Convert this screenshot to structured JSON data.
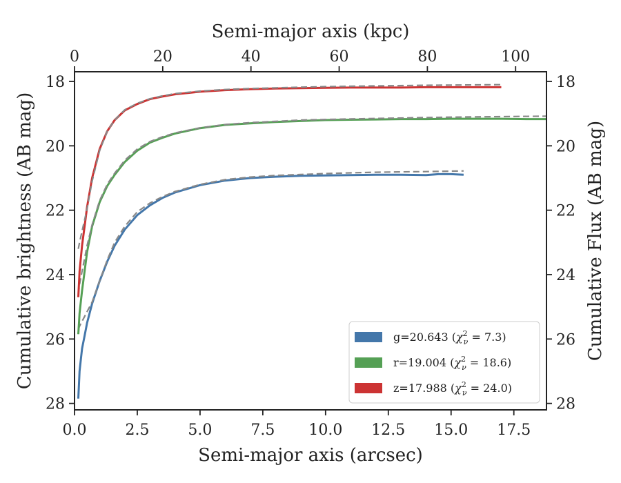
{
  "chart_data": {
    "type": "line",
    "xlabel": "Semi-major axis (arcsec)",
    "xlabel_top": "Semi-major axis (kpc)",
    "ylabel": "Cumulative brightness (AB mag)",
    "ylabel_right": "Cumulative Flux (AB mag)",
    "xlim": [
      0,
      18.8
    ],
    "ylim": [
      28.2,
      17.7
    ],
    "x_top_lim": [
      0,
      107
    ],
    "x_ticks": [
      0,
      2.5,
      5,
      7.5,
      10,
      12.5,
      15,
      17.5
    ],
    "x_tick_labels": [
      "0.0",
      "2.5",
      "5.0",
      "7.5",
      "10.0",
      "12.5",
      "15.0",
      "17.5"
    ],
    "x_top_ticks": [
      0,
      20,
      40,
      60,
      80,
      100
    ],
    "x_top_tick_labels": [
      "0",
      "20",
      "40",
      "60",
      "80",
      "100"
    ],
    "y_ticks": [
      18,
      20,
      22,
      24,
      26,
      28
    ],
    "y_tick_labels": [
      "18",
      "20",
      "22",
      "24",
      "26",
      "28"
    ],
    "legend_position": "lower-right",
    "series": [
      {
        "key": "g",
        "legend_prefix": "g=20.643 (",
        "legend_chi": "7.3",
        "color": "#4477aa",
        "fit_color": "#888888",
        "x": [
          0.15,
          0.2,
          0.3,
          0.4,
          0.5,
          0.7,
          1.0,
          1.3,
          1.6,
          2.0,
          2.5,
          3.0,
          3.5,
          4.0,
          5.0,
          6.0,
          7.0,
          8.0,
          9.0,
          10.0,
          11.0,
          12.0,
          13.0,
          14.0,
          14.5,
          15.0,
          15.5
        ],
        "y": [
          27.85,
          27.0,
          26.3,
          25.9,
          25.5,
          24.9,
          24.2,
          23.6,
          23.1,
          22.6,
          22.15,
          21.85,
          21.62,
          21.45,
          21.22,
          21.08,
          21.0,
          20.96,
          20.93,
          20.92,
          20.91,
          20.9,
          20.9,
          20.91,
          20.88,
          20.88,
          20.9
        ],
        "fit_x": [
          0.15,
          0.2,
          0.3,
          0.4,
          0.5,
          0.7,
          1.0,
          1.3,
          1.6,
          2.0,
          2.5,
          3.0,
          3.5,
          4.0,
          5.0,
          6.0,
          7.0,
          8.0,
          9.0,
          10.0,
          11.0,
          12.0,
          13.0,
          14.0,
          15.5
        ],
        "fit_y": [
          25.7,
          25.6,
          25.45,
          25.3,
          25.15,
          24.85,
          24.2,
          23.55,
          23.0,
          22.5,
          22.05,
          21.78,
          21.58,
          21.42,
          21.2,
          21.05,
          20.97,
          20.92,
          20.89,
          20.86,
          20.84,
          20.82,
          20.81,
          20.8,
          20.78
        ]
      },
      {
        "key": "r",
        "legend_prefix": "r=19.004 (",
        "legend_chi": "18.6",
        "color": "#55a055",
        "fit_color": "#888888",
        "x": [
          0.15,
          0.2,
          0.3,
          0.4,
          0.5,
          0.7,
          1.0,
          1.3,
          1.6,
          2.0,
          2.5,
          3.0,
          3.5,
          4.0,
          5.0,
          6.0,
          7.0,
          8.0,
          9.0,
          10.0,
          11.0,
          12.0,
          13.0,
          14.0,
          15.0,
          16.0,
          17.0,
          18.0,
          18.8
        ],
        "y": [
          25.85,
          25.2,
          24.5,
          23.9,
          23.3,
          22.5,
          21.75,
          21.25,
          20.9,
          20.5,
          20.15,
          19.9,
          19.75,
          19.62,
          19.45,
          19.35,
          19.3,
          19.26,
          19.23,
          19.2,
          19.19,
          19.18,
          19.17,
          19.17,
          19.16,
          19.16,
          19.16,
          19.17,
          19.17
        ],
        "fit_x": [
          0.15,
          0.2,
          0.3,
          0.4,
          0.5,
          0.7,
          1.0,
          1.3,
          1.6,
          2.0,
          2.5,
          3.0,
          3.5,
          4.0,
          5.0,
          6.0,
          7.0,
          8.0,
          9.0,
          10.0,
          12.0,
          14.0,
          16.0,
          18.8
        ],
        "fit_y": [
          24.6,
          24.3,
          23.9,
          23.5,
          23.1,
          22.45,
          21.7,
          21.2,
          20.85,
          20.45,
          20.1,
          19.87,
          19.72,
          19.6,
          19.44,
          19.34,
          19.28,
          19.24,
          19.2,
          19.18,
          19.15,
          19.12,
          19.1,
          19.08
        ]
      },
      {
        "key": "z",
        "legend_prefix": "z=17.988 (",
        "legend_chi": "24.0",
        "color": "#cc3333",
        "fit_color": "#888888",
        "x": [
          0.15,
          0.2,
          0.3,
          0.4,
          0.5,
          0.7,
          1.0,
          1.3,
          1.6,
          2.0,
          2.5,
          3.0,
          3.5,
          4.0,
          5.0,
          6.0,
          7.0,
          8.0,
          9.0,
          10.0,
          11.0,
          12.0,
          13.0,
          14.0,
          15.0,
          16.0,
          17.0
        ],
        "y": [
          24.7,
          23.9,
          23.1,
          22.5,
          21.9,
          21.0,
          20.1,
          19.55,
          19.2,
          18.9,
          18.7,
          18.55,
          18.47,
          18.4,
          18.32,
          18.27,
          18.24,
          18.22,
          18.21,
          18.2,
          18.19,
          18.19,
          18.19,
          18.18,
          18.18,
          18.18,
          18.18
        ],
        "fit_x": [
          0.15,
          0.2,
          0.3,
          0.4,
          0.5,
          0.7,
          1.0,
          1.3,
          1.6,
          2.0,
          2.5,
          3.0,
          3.5,
          4.0,
          5.0,
          6.0,
          7.0,
          8.0,
          9.0,
          10.0,
          12.0,
          14.0,
          17.0
        ],
        "fit_y": [
          23.2,
          23.0,
          22.65,
          22.3,
          21.95,
          21.1,
          20.15,
          19.55,
          19.2,
          18.88,
          18.68,
          18.54,
          18.45,
          18.38,
          18.3,
          18.25,
          18.22,
          18.2,
          18.18,
          18.16,
          18.14,
          18.12,
          18.1
        ]
      }
    ]
  }
}
